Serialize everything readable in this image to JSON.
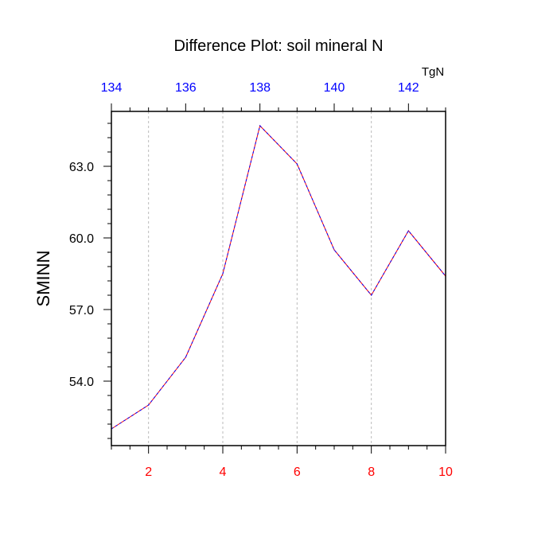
{
  "chart_data": {
    "type": "line",
    "title": "Difference Plot: soil mineral N",
    "ylabel": "SMINN",
    "xlabel": "",
    "top_axis_unit": "TgN",
    "x": [
      1,
      2,
      3,
      4,
      5,
      6,
      7,
      8,
      9,
      10
    ],
    "series": [
      {
        "values": [
          52.0,
          53.0,
          55.0,
          58.5,
          64.7,
          63.1,
          59.5,
          57.6,
          60.3,
          58.4
        ],
        "color_primary": "#ff0000",
        "color_secondary": "#0000ff",
        "style": "dashed"
      }
    ],
    "xlim": [
      1,
      10
    ],
    "ylim": [
      51.3,
      65.3
    ],
    "bottom_ticks": {
      "values": [
        2,
        4,
        6,
        8,
        10
      ],
      "labels": [
        "2",
        "4",
        "6",
        "8",
        "10"
      ],
      "color": "#ff0000"
    },
    "top_ticks": {
      "values": [
        1,
        3,
        5,
        7,
        9
      ],
      "labels": [
        "134",
        "136",
        "138",
        "140",
        "142"
      ],
      "color": "#0000ff"
    },
    "left_ticks": {
      "values": [
        54.0,
        57.0,
        60.0,
        63.0
      ],
      "labels": [
        "54.0",
        "57.0",
        "60.0",
        "63.0"
      ],
      "color": "#000000"
    },
    "grid": "vertical-dotted"
  }
}
